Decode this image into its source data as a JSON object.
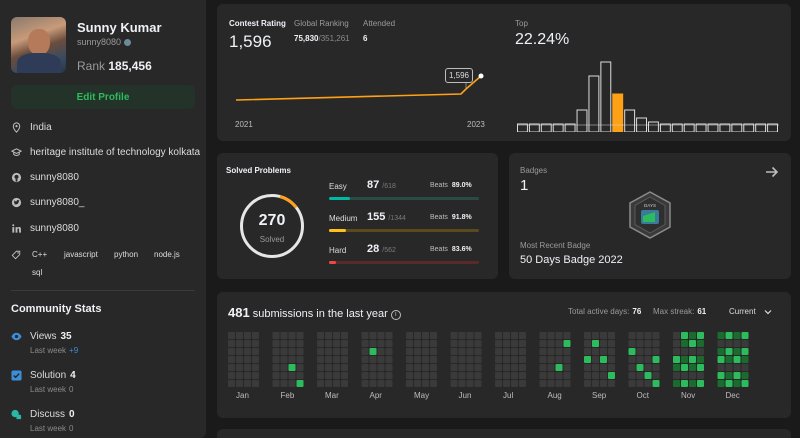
{
  "profile": {
    "name": "Sunny Kumar",
    "username": "sunny8080",
    "rank_label": "Rank",
    "rank_value": "185,456",
    "edit_button": "Edit Profile",
    "location": "India",
    "school": "heritage institute of technology kolkata",
    "github": "sunny8080",
    "twitter": "sunny8080_",
    "linkedin": "sunny8080",
    "skills": [
      "C++",
      "javascript",
      "python",
      "node.js",
      "sql"
    ]
  },
  "community": {
    "title": "Community Stats",
    "views": {
      "label": "Views",
      "value": "35",
      "week_label": "Last week",
      "week_value": "+9"
    },
    "solution": {
      "label": "Solution",
      "value": "4",
      "week_label": "Last week",
      "week_value": "0"
    },
    "discuss": {
      "label": "Discuss",
      "value": "0",
      "week_label": "Last week",
      "week_value": "0"
    }
  },
  "contest": {
    "rating_label": "Contest Rating",
    "rating": "1,596",
    "global_label": "Global Ranking",
    "global_rank": "75,830",
    "global_total": "/351,261",
    "attended_label": "Attended",
    "attended": "6",
    "top_label": "Top",
    "top_value": "22.24%",
    "tooltip": "1,596",
    "year_start": "2021",
    "year_end": "2023"
  },
  "solved": {
    "title": "Solved Problems",
    "total": "270",
    "total_label": "Solved",
    "easy": {
      "label": "Easy",
      "count": "87",
      "total": "/618",
      "beats_label": "Beats",
      "beats": "89.0%",
      "fraction": 0.1408
    },
    "medium": {
      "label": "Medium",
      "count": "155",
      "total": "/1344",
      "beats_label": "Beats",
      "beats": "91.8%",
      "fraction": 0.1153
    },
    "hard": {
      "label": "Hard",
      "count": "28",
      "total": "/562",
      "beats_label": "Beats",
      "beats": "83.6%",
      "fraction": 0.0498
    }
  },
  "badges": {
    "label": "Badges",
    "count": "1",
    "recent_label": "Most Recent Badge",
    "recent_name": "50 Days Badge 2022",
    "badge_text": "DAYS"
  },
  "submissions": {
    "count": "481",
    "title": "submissions in the last year",
    "active_label": "Total active days:",
    "active_value": "76",
    "streak_label": "Max streak:",
    "streak_value": "61",
    "period": "Current",
    "months": [
      "Jan",
      "Feb",
      "Mar",
      "Apr",
      "May",
      "Jun",
      "Jul",
      "Aug",
      "Sep",
      "Oct",
      "Nov",
      "Dec"
    ]
  },
  "colors": {
    "easy": "#00b8a3",
    "medium": "#ffc01e",
    "hard": "#ef4743",
    "accent_green": "#2cbb5d",
    "rating_line": "#ffa116"
  }
}
